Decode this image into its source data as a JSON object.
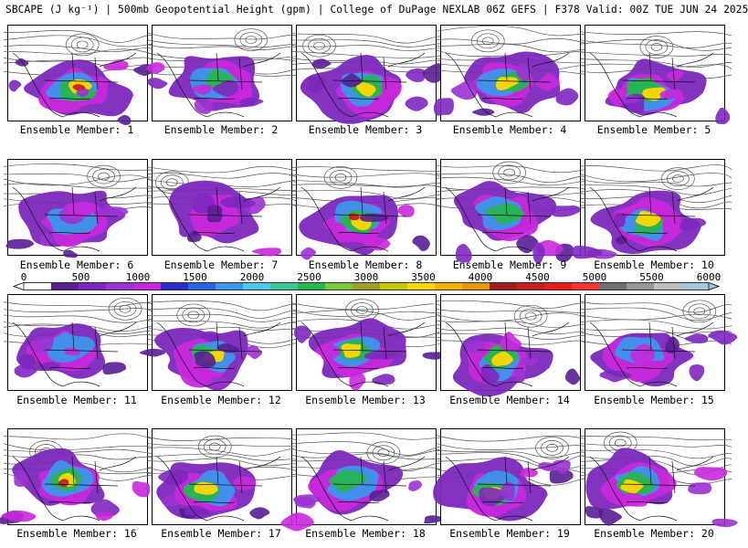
{
  "title": "SBCAPE (J kg⁻¹) | 500mb Geopotential Height (gpm) | College of DuPage NEXLAB 06Z GEFS | F378 Valid: 00Z TUE JUN 24 2025",
  "member_label_prefix": "Ensemble Member: ",
  "colorbar": {
    "ticks": [
      "0",
      "500",
      "1000",
      "1500",
      "2000",
      "2500",
      "3000",
      "3500",
      "4000",
      "4500",
      "5000",
      "5500",
      "6000"
    ],
    "min": 0,
    "max": 6000,
    "step": 250,
    "colors": [
      "#ffffff",
      "#5a1e96",
      "#7d28be",
      "#9b32d2",
      "#c828dc",
      "#2d2dcd",
      "#2864e6",
      "#3c96eb",
      "#50c8f0",
      "#3cc896",
      "#28b450",
      "#78c83c",
      "#a0a028",
      "#c8c800",
      "#ffd700",
      "#f0b400",
      "#e69600",
      "#a01e1e",
      "#c81e1e",
      "#e61e1e",
      "#ff3232",
      "#6e6e6e",
      "#969696",
      "#bebebe",
      "#a0c8dc"
    ]
  },
  "members": [
    {
      "id": 1,
      "label": "1",
      "intensity": 0.95
    },
    {
      "id": 2,
      "label": "2",
      "intensity": 0.65
    },
    {
      "id": 3,
      "label": "3",
      "intensity": 0.8
    },
    {
      "id": 4,
      "label": "4",
      "intensity": 0.75
    },
    {
      "id": 5,
      "label": "5",
      "intensity": 0.85
    },
    {
      "id": 6,
      "label": "6",
      "intensity": 0.5
    },
    {
      "id": 7,
      "label": "7",
      "intensity": 0.35
    },
    {
      "id": 8,
      "label": "8",
      "intensity": 0.95
    },
    {
      "id": 9,
      "label": "9",
      "intensity": 0.6
    },
    {
      "id": 10,
      "label": "10",
      "intensity": 0.75
    },
    {
      "id": 11,
      "label": "11",
      "intensity": 0.5
    },
    {
      "id": 12,
      "label": "12",
      "intensity": 0.9
    },
    {
      "id": 13,
      "label": "13",
      "intensity": 0.85
    },
    {
      "id": 14,
      "label": "14",
      "intensity": 0.8
    },
    {
      "id": 15,
      "label": "15",
      "intensity": 0.55
    },
    {
      "id": 16,
      "label": "16",
      "intensity": 1.0
    },
    {
      "id": 17,
      "label": "17",
      "intensity": 0.8
    },
    {
      "id": 18,
      "label": "18",
      "intensity": 0.65
    },
    {
      "id": 19,
      "label": "19",
      "intensity": 0.9
    },
    {
      "id": 20,
      "label": "20",
      "intensity": 0.75
    }
  ]
}
